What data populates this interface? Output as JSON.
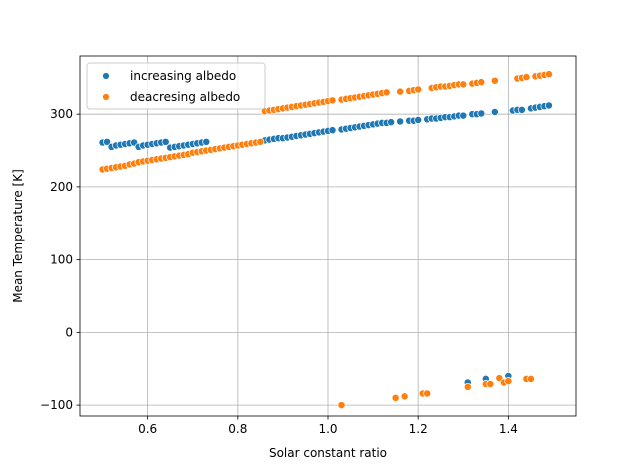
{
  "chart_data": {
    "type": "scatter",
    "xlabel": "Solar constant ratio",
    "ylabel": "Mean Temperature [K]",
    "xlim": [
      0.45,
      1.55
    ],
    "ylim": [
      -115,
      380
    ],
    "x_ticks": [
      0.6,
      0.8,
      1.0,
      1.2,
      1.4
    ],
    "x_tick_labels": [
      "0.6",
      "0.8",
      "1.0",
      "1.2",
      "1.4"
    ],
    "y_ticks": [
      -100,
      0,
      100,
      200,
      300
    ],
    "y_tick_labels": [
      "−100",
      "0",
      "100",
      "200",
      "300"
    ],
    "grid": true,
    "legend_position": "upper-left",
    "series": [
      {
        "name": "increasing albedo",
        "color": "#1f77b4",
        "points": [
          [
            0.5,
            261
          ],
          [
            0.51,
            262
          ],
          [
            0.52,
            255
          ],
          [
            0.53,
            257
          ],
          [
            0.54,
            258
          ],
          [
            0.55,
            259
          ],
          [
            0.56,
            260
          ],
          [
            0.57,
            261
          ],
          [
            0.58,
            255
          ],
          [
            0.59,
            257
          ],
          [
            0.6,
            258
          ],
          [
            0.61,
            259
          ],
          [
            0.62,
            260
          ],
          [
            0.63,
            261
          ],
          [
            0.64,
            262
          ],
          [
            0.65,
            254
          ],
          [
            0.66,
            255
          ],
          [
            0.67,
            256
          ],
          [
            0.68,
            257
          ],
          [
            0.69,
            258
          ],
          [
            0.7,
            259
          ],
          [
            0.71,
            260
          ],
          [
            0.72,
            261
          ],
          [
            0.73,
            262
          ],
          [
            0.86,
            264
          ],
          [
            0.87,
            265
          ],
          [
            0.88,
            266
          ],
          [
            0.89,
            267
          ],
          [
            0.9,
            267
          ],
          [
            0.91,
            268
          ],
          [
            0.92,
            269
          ],
          [
            0.93,
            270
          ],
          [
            0.94,
            271
          ],
          [
            0.95,
            272
          ],
          [
            0.96,
            273
          ],
          [
            0.97,
            274
          ],
          [
            0.98,
            275
          ],
          [
            0.99,
            276
          ],
          [
            1.0,
            277
          ],
          [
            1.01,
            278
          ],
          [
            1.03,
            279
          ],
          [
            1.04,
            280
          ],
          [
            1.05,
            281
          ],
          [
            1.06,
            282
          ],
          [
            1.07,
            283
          ],
          [
            1.08,
            284
          ],
          [
            1.09,
            285
          ],
          [
            1.1,
            286
          ],
          [
            1.11,
            287
          ],
          [
            1.12,
            288
          ],
          [
            1.13,
            288
          ],
          [
            1.14,
            289
          ],
          [
            1.16,
            290
          ],
          [
            1.18,
            291
          ],
          [
            1.19,
            291
          ],
          [
            1.2,
            292
          ],
          [
            1.22,
            293
          ],
          [
            1.23,
            294
          ],
          [
            1.24,
            294
          ],
          [
            1.25,
            295
          ],
          [
            1.26,
            296
          ],
          [
            1.27,
            296
          ],
          [
            1.28,
            297
          ],
          [
            1.29,
            298
          ],
          [
            1.3,
            298
          ],
          [
            1.32,
            300
          ],
          [
            1.33,
            300
          ],
          [
            1.34,
            301
          ],
          [
            1.37,
            303
          ],
          [
            1.41,
            305
          ],
          [
            1.42,
            306
          ],
          [
            1.43,
            306
          ],
          [
            1.45,
            308
          ],
          [
            1.46,
            309
          ],
          [
            1.47,
            310
          ],
          [
            1.48,
            311
          ],
          [
            1.49,
            312
          ],
          [
            1.31,
            -69
          ],
          [
            1.35,
            -64
          ],
          [
            1.4,
            -60
          ]
        ]
      },
      {
        "name": "deacresing albedo",
        "color": "#ff7f0e",
        "points": [
          [
            0.5,
            224
          ],
          [
            0.51,
            225
          ],
          [
            0.52,
            226
          ],
          [
            0.53,
            227
          ],
          [
            0.54,
            228
          ],
          [
            0.55,
            229
          ],
          [
            0.56,
            231
          ],
          [
            0.57,
            232
          ],
          [
            0.58,
            234
          ],
          [
            0.59,
            235
          ],
          [
            0.6,
            236
          ],
          [
            0.61,
            237
          ],
          [
            0.62,
            238
          ],
          [
            0.63,
            239
          ],
          [
            0.64,
            240
          ],
          [
            0.65,
            241
          ],
          [
            0.66,
            242
          ],
          [
            0.67,
            243
          ],
          [
            0.68,
            244
          ],
          [
            0.69,
            245
          ],
          [
            0.7,
            247
          ],
          [
            0.71,
            248
          ],
          [
            0.72,
            249
          ],
          [
            0.73,
            250
          ],
          [
            0.74,
            251
          ],
          [
            0.75,
            252
          ],
          [
            0.76,
            253
          ],
          [
            0.77,
            254
          ],
          [
            0.78,
            255
          ],
          [
            0.79,
            256
          ],
          [
            0.8,
            257
          ],
          [
            0.81,
            258
          ],
          [
            0.82,
            259
          ],
          [
            0.83,
            260
          ],
          [
            0.84,
            261
          ],
          [
            0.85,
            262
          ],
          [
            0.86,
            304
          ],
          [
            0.87,
            305
          ],
          [
            0.88,
            306
          ],
          [
            0.89,
            307
          ],
          [
            0.9,
            308
          ],
          [
            0.91,
            309
          ],
          [
            0.92,
            310
          ],
          [
            0.93,
            311
          ],
          [
            0.94,
            312
          ],
          [
            0.95,
            313
          ],
          [
            0.96,
            314
          ],
          [
            0.97,
            315
          ],
          [
            0.98,
            316
          ],
          [
            0.99,
            317
          ],
          [
            1.0,
            318
          ],
          [
            1.01,
            319
          ],
          [
            1.03,
            320
          ],
          [
            1.04,
            321
          ],
          [
            1.05,
            322
          ],
          [
            1.06,
            323
          ],
          [
            1.07,
            324
          ],
          [
            1.08,
            325
          ],
          [
            1.09,
            326
          ],
          [
            1.1,
            327
          ],
          [
            1.11,
            328
          ],
          [
            1.12,
            329
          ],
          [
            1.13,
            330
          ],
          [
            1.16,
            331
          ],
          [
            1.18,
            332
          ],
          [
            1.19,
            333
          ],
          [
            1.2,
            334
          ],
          [
            1.23,
            336
          ],
          [
            1.24,
            337
          ],
          [
            1.25,
            338
          ],
          [
            1.26,
            338
          ],
          [
            1.27,
            339
          ],
          [
            1.28,
            340
          ],
          [
            1.29,
            341
          ],
          [
            1.3,
            341
          ],
          [
            1.32,
            342
          ],
          [
            1.33,
            343
          ],
          [
            1.34,
            344
          ],
          [
            1.37,
            346
          ],
          [
            1.42,
            349
          ],
          [
            1.43,
            350
          ],
          [
            1.44,
            351
          ],
          [
            1.46,
            352
          ],
          [
            1.47,
            353
          ],
          [
            1.48,
            354
          ],
          [
            1.49,
            355
          ],
          [
            1.03,
            -100
          ],
          [
            1.15,
            -90
          ],
          [
            1.17,
            -88
          ],
          [
            1.21,
            -84
          ],
          [
            1.22,
            -84
          ],
          [
            1.31,
            -75
          ],
          [
            1.35,
            -71
          ],
          [
            1.36,
            -71
          ],
          [
            1.38,
            -63
          ],
          [
            1.39,
            -69
          ],
          [
            1.4,
            -67
          ],
          [
            1.44,
            -64
          ],
          [
            1.45,
            -64
          ]
        ]
      }
    ]
  }
}
